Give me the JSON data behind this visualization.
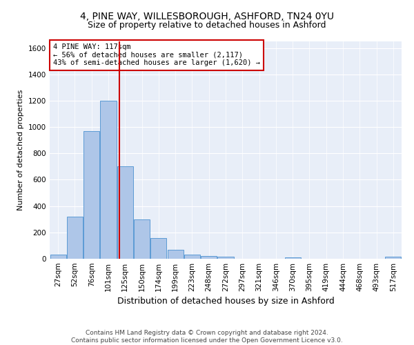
{
  "title1": "4, PINE WAY, WILLESBOROUGH, ASHFORD, TN24 0YU",
  "title2": "Size of property relative to detached houses in Ashford",
  "xlabel": "Distribution of detached houses by size in Ashford",
  "ylabel": "Number of detached properties",
  "footer1": "Contains HM Land Registry data © Crown copyright and database right 2024.",
  "footer2": "Contains public sector information licensed under the Open Government Licence v3.0.",
  "bar_labels": [
    "27sqm",
    "52sqm",
    "76sqm",
    "101sqm",
    "125sqm",
    "150sqm",
    "174sqm",
    "199sqm",
    "223sqm",
    "248sqm",
    "272sqm",
    "297sqm",
    "321sqm",
    "346sqm",
    "370sqm",
    "395sqm",
    "419sqm",
    "444sqm",
    "468sqm",
    "493sqm",
    "517sqm"
  ],
  "bar_values": [
    30,
    320,
    970,
    1200,
    700,
    300,
    155,
    70,
    30,
    20,
    15,
    0,
    0,
    0,
    10,
    0,
    0,
    0,
    0,
    0,
    15
  ],
  "bar_color": "#aec6e8",
  "bar_edgecolor": "#5b9bd5",
  "annotation_line0": "4 PINE WAY: 117sqm",
  "annotation_line1": "← 56% of detached houses are smaller (2,117)",
  "annotation_line2": "43% of semi-detached houses are larger (1,620) →",
  "vline_color": "#cc0000",
  "vline_x_index": 3.64,
  "ylim": [
    0,
    1650
  ],
  "yticks": [
    0,
    200,
    400,
    600,
    800,
    1000,
    1200,
    1400,
    1600
  ],
  "bg_color": "#e8eef8",
  "annotation_box_color": "#ffffff",
  "annotation_box_edgecolor": "#cc0000",
  "title1_fontsize": 10,
  "title2_fontsize": 9,
  "xlabel_fontsize": 9,
  "ylabel_fontsize": 8,
  "tick_fontsize": 7.5,
  "footer_fontsize": 6.5
}
